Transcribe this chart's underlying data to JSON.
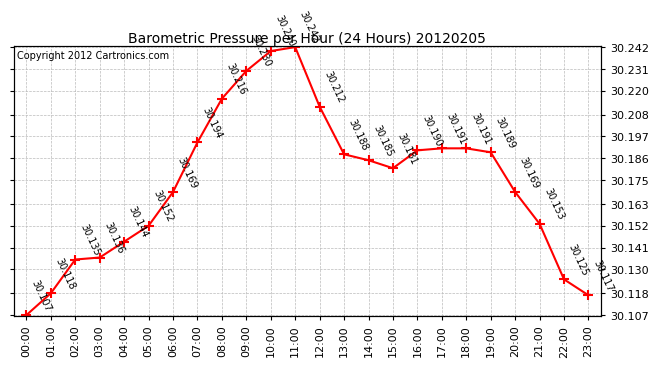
{
  "title": "Barometric Pressure per Hour (24 Hours) 20120205",
  "copyright": "Copyright 2012 Cartronics.com",
  "hours": [
    0,
    1,
    2,
    3,
    4,
    5,
    6,
    7,
    8,
    9,
    10,
    11,
    12,
    13,
    14,
    15,
    16,
    17,
    18,
    19,
    20,
    21,
    22,
    23
  ],
  "hour_labels": [
    "00:00",
    "01:00",
    "02:00",
    "03:00",
    "04:00",
    "05:00",
    "06:00",
    "07:00",
    "08:00",
    "09:00",
    "10:00",
    "11:00",
    "12:00",
    "13:00",
    "14:00",
    "15:00",
    "16:00",
    "17:00",
    "18:00",
    "19:00",
    "20:00",
    "21:00",
    "22:00",
    "23:00"
  ],
  "values": [
    30.107,
    30.118,
    30.135,
    30.136,
    30.144,
    30.152,
    30.169,
    30.194,
    30.216,
    30.23,
    30.24,
    30.242,
    30.212,
    30.188,
    30.185,
    30.181,
    30.19,
    30.191,
    30.191,
    30.189,
    30.169,
    30.153,
    30.125,
    30.117
  ],
  "ylim_min": 30.107,
  "ylim_max": 30.242,
  "yticks": [
    30.107,
    30.118,
    30.13,
    30.141,
    30.152,
    30.163,
    30.175,
    30.186,
    30.197,
    30.208,
    30.22,
    30.231,
    30.242
  ],
  "line_color": "red",
  "marker": "+",
  "marker_size": 7,
  "marker_linewidth": 1.5,
  "background_color": "white",
  "grid_color": "#bbbbbb",
  "label_fontsize": 7,
  "label_color": "black",
  "title_fontsize": 10,
  "copyright_fontsize": 7,
  "tick_labelsize": 8
}
